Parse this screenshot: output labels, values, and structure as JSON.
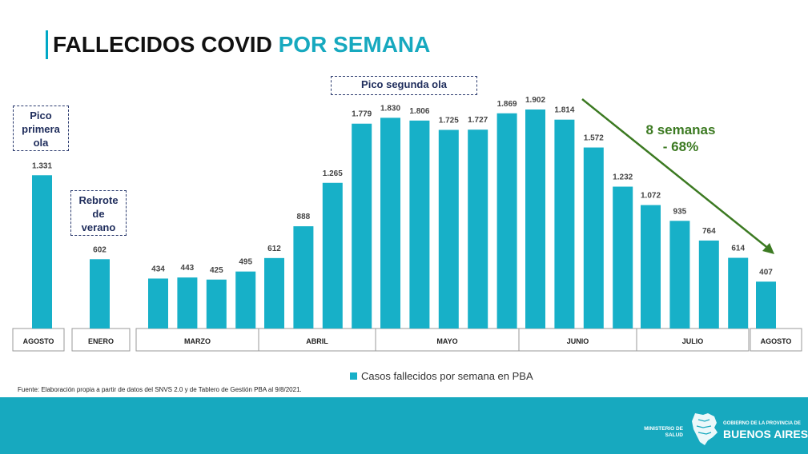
{
  "title": {
    "part1": "FALLECIDOS COVID",
    "part2": "POR SEMANA"
  },
  "callouts": {
    "first_peak": [
      "Pico",
      "primera",
      "ola"
    ],
    "summer": [
      "Rebrote",
      "de",
      "verano"
    ],
    "second_peak": "Pico segunda ola"
  },
  "annotation": {
    "line1": "8 semanas",
    "line2": "- 68%"
  },
  "legend": {
    "label": "Casos fallecidos por semana en PBA"
  },
  "source": "Fuente: Elaboración propia a partir de datos del SNVS 2.0 y de Tablero de Gestión PBA al 9/8/2021.",
  "footer": {
    "ministry": [
      "MINISTERIO DE",
      "SALUD"
    ],
    "gov_small": "GOBIERNO DE LA PROVINCIA DE",
    "gov_big": "BUENOS AIRES"
  },
  "colors": {
    "bar": "#17b0c8",
    "accent": "#17a9bf",
    "arrow": "#3c7a22",
    "footer": "#17a9bf"
  },
  "chart_data": {
    "type": "bar",
    "series": [
      {
        "name": "Casos fallecidos por semana en PBA",
        "groups": [
          {
            "label": "AGOSTO",
            "values": [
              1331
            ],
            "labels": [
              "1.331"
            ]
          },
          {
            "label": "ENERO",
            "values": [
              602
            ],
            "labels": [
              "602"
            ]
          },
          {
            "label": "MARZO",
            "values": [
              434,
              443,
              425,
              495
            ],
            "labels": [
              "434",
              "443",
              "425",
              "495"
            ]
          },
          {
            "label": "ABRIL",
            "values": [
              612,
              888,
              1265,
              1779
            ],
            "labels": [
              "612",
              "888",
              "1.265",
              "1.779"
            ]
          },
          {
            "label": "MAYO",
            "values": [
              1830,
              1806,
              1725,
              1727,
              1869
            ],
            "labels": [
              "1.830",
              "1.806",
              "1.725",
              "1.727",
              "1.869"
            ]
          },
          {
            "label": "JUNIO",
            "values": [
              1902,
              1814,
              1572,
              1232
            ],
            "labels": [
              "1.902",
              "1.814",
              "1.572",
              "1.232"
            ]
          },
          {
            "label": "JULIO",
            "values": [
              1072,
              935,
              764,
              614
            ],
            "labels": [
              "1.072",
              "935",
              "764",
              "614"
            ]
          },
          {
            "label": "AGOSTO",
            "values": [
              407
            ],
            "labels": [
              "407"
            ]
          }
        ]
      }
    ],
    "ylim": [
      0,
      2000
    ]
  }
}
